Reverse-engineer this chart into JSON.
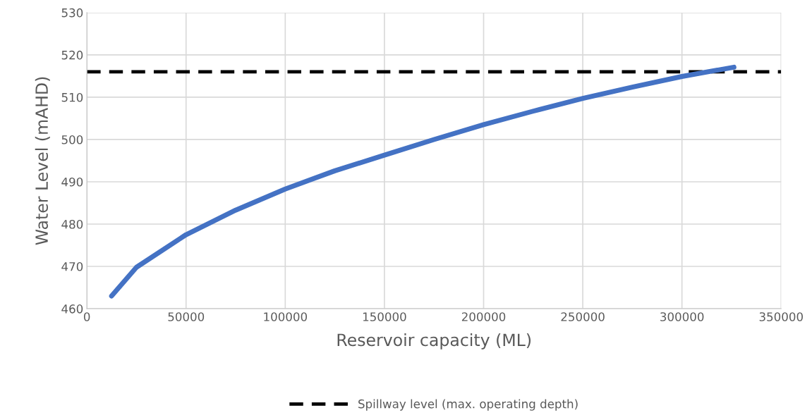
{
  "chart_data": {
    "type": "line",
    "xlabel": "Reservoir capacity (ML)",
    "ylabel": "Water Level (mAHD)",
    "xlim": [
      0,
      350000
    ],
    "xticks": [
      0,
      50000,
      100000,
      150000,
      200000,
      250000,
      300000,
      350000
    ],
    "ylim": [
      460,
      530
    ],
    "yticks": [
      460,
      470,
      480,
      490,
      500,
      510,
      520,
      530
    ],
    "grid": true,
    "legend": "bottom",
    "marker": "none",
    "line_style": "solid",
    "series": [
      {
        "color": "#4472c4",
        "x": [
          12450,
          25000,
          50000,
          75000,
          100000,
          125000,
          150000,
          175000,
          200000,
          225000,
          250000,
          275000,
          300000,
          326200
        ],
        "values": [
          463.0,
          469.8,
          477.5,
          483.3,
          488.3,
          492.6,
          496.3,
          500.0,
          503.5,
          506.7,
          509.7,
          512.4,
          514.9,
          517.1
        ]
      }
    ],
    "ref_lines": [
      {
        "axis": "y",
        "value": 516,
        "label": "Spillway level (max. operating depth)",
        "color": "#000000",
        "line_style": "dashed"
      }
    ]
  }
}
